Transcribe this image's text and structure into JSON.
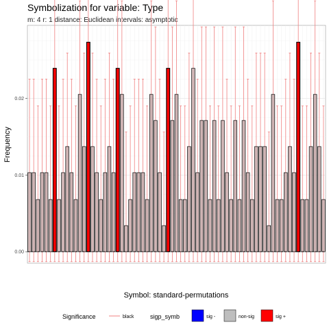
{
  "chart_data": {
    "type": "bar",
    "title": "Symbolization for variable: Type",
    "subtitle": "m: 4  r:  1  distance:  Euclidean  intervals:  asymptotic",
    "xlabel": "Symbol: standard-permutations",
    "ylabel": "Frequency",
    "ylim": [
      -0.0015,
      0.0295
    ],
    "yticks": [
      0.0,
      0.01,
      0.02
    ],
    "ytick_labels": [
      "0.00",
      "0.01",
      "0.02"
    ],
    "grid": true,
    "reference_line": 0.0,
    "values": [
      0.0103,
      0.0103,
      0.0068,
      0.0103,
      0.0103,
      0.0068,
      0.0239,
      0.0068,
      0.0103,
      0.0137,
      0.0103,
      0.0068,
      0.0205,
      0.0137,
      0.0273,
      0.0137,
      0.0103,
      0.0068,
      0.0103,
      0.0137,
      0.0103,
      0.0239,
      0.0205,
      0.0034,
      0.0068,
      0.0103,
      0.0103,
      0.0103,
      0.0068,
      0.0205,
      0.0171,
      0.0103,
      0.0034,
      0.0239,
      0.0171,
      0.0205,
      0.0068,
      0.0068,
      0.0137,
      0.0239,
      0.0103,
      0.0171,
      0.0171,
      0.0068,
      0.0171,
      0.0068,
      0.0171,
      0.0103,
      0.0068,
      0.0171,
      0.0068,
      0.0171,
      0.0103,
      0.0068,
      0.0137,
      0.0137,
      0.0137,
      0.0034,
      0.0205,
      0.0068,
      0.0068,
      0.0103,
      0.0137,
      0.0103,
      0.0273,
      0.0068,
      0.0068,
      0.0137,
      0.0205,
      0.0137,
      0.0068
    ],
    "significance": [
      "ns",
      "ns",
      "ns",
      "ns",
      "ns",
      "ns",
      "sig+",
      "ns",
      "ns",
      "ns",
      "ns",
      "ns",
      "ns",
      "ns",
      "sig+",
      "ns",
      "ns",
      "ns",
      "ns",
      "ns",
      "ns",
      "sig+",
      "ns",
      "ns",
      "ns",
      "ns",
      "ns",
      "ns",
      "ns",
      "ns",
      "ns",
      "ns",
      "ns",
      "sig+",
      "ns",
      "ns",
      "ns",
      "ns",
      "ns",
      "ns",
      "ns",
      "ns",
      "ns",
      "ns",
      "ns",
      "ns",
      "ns",
      "ns",
      "ns",
      "ns",
      "ns",
      "ns",
      "ns",
      "ns",
      "ns",
      "ns",
      "ns",
      "ns",
      "ns",
      "ns",
      "ns",
      "ns",
      "ns",
      "ns",
      "sig+",
      "ns",
      "ns",
      "ns",
      "ns",
      "ns",
      "ns"
    ],
    "interval_upper_offset": 0.0122,
    "interval_lower": -0.0013,
    "legend": {
      "placement": "bottom",
      "significance_title": "Significance",
      "significance_line_label": "black",
      "symb_title": "sigp_symb",
      "entries": [
        {
          "label": "sig -",
          "color": "#0000ff"
        },
        {
          "label": "non-sig",
          "color": "#bebebe"
        },
        {
          "label": "sig +",
          "color": "#ff0000"
        }
      ]
    },
    "colors": {
      "non_sig_fill": "#c8aeae",
      "sig_plus_fill": "#ff0000",
      "interval_line": "#f08080",
      "bar_outline": "#000000",
      "panel_border": "#999999",
      "gridline": "#ebebeb"
    }
  }
}
